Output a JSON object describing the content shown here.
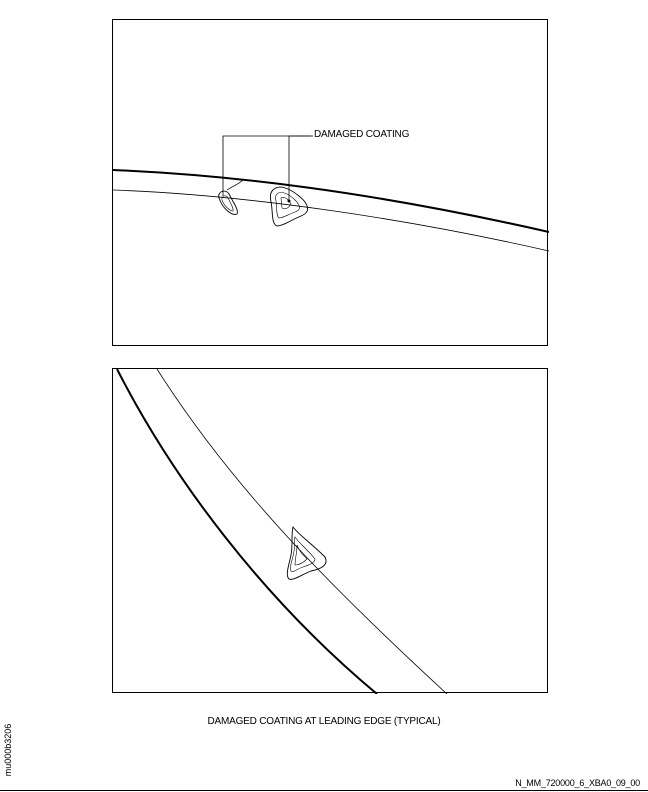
{
  "callout": {
    "label": "DAMAGED COATING"
  },
  "caption": "DAMAGED COATING AT LEADING EDGE (TYPICAL)",
  "side_code": "mu000b3206",
  "reference_code": "N_MM_720000_6_XBA0_09_00",
  "colors": {
    "line": "#000000",
    "background": "#ffffff"
  }
}
